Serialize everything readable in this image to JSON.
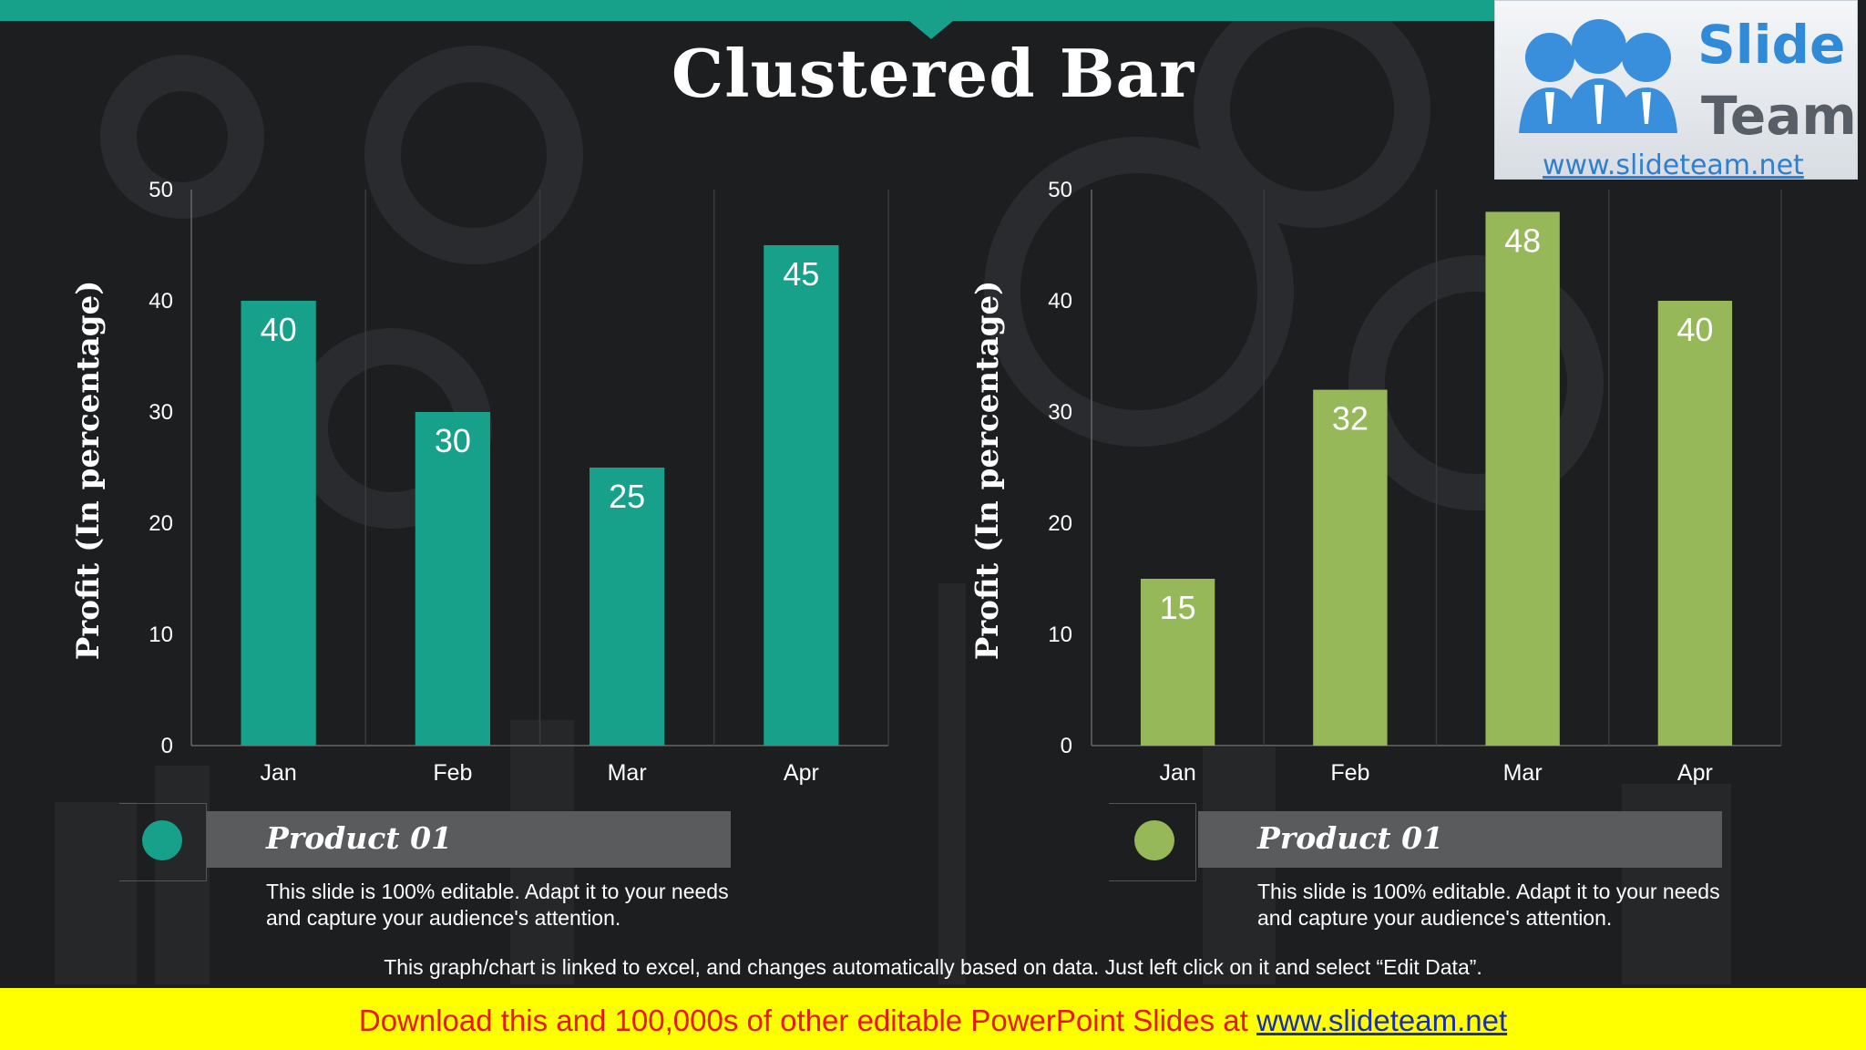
{
  "title": "Clustered Bar",
  "logo": {
    "word1": "Slide",
    "word2": "Team",
    "url": "www.slideteam.net"
  },
  "colors": {
    "teal": "#17a08a",
    "green": "#97b858",
    "background": "#1d1e20"
  },
  "chart_data": [
    {
      "type": "bar",
      "categories": [
        "Jan",
        "Feb",
        "Mar",
        "Apr"
      ],
      "values": [
        40,
        30,
        25,
        45
      ],
      "ylabel": "Profit  (In percentage)",
      "ylim": [
        0,
        50
      ],
      "yticks": [
        "0",
        "10",
        "20",
        "30",
        "40",
        "50"
      ],
      "color": "#17a08a",
      "grid": "vertical separators"
    },
    {
      "type": "bar",
      "categories": [
        "Jan",
        "Feb",
        "Mar",
        "Apr"
      ],
      "values": [
        15,
        32,
        48,
        40
      ],
      "ylabel": "Profit  (In percentage)",
      "ylim": [
        0,
        50
      ],
      "yticks": [
        "0",
        "10",
        "20",
        "30",
        "40",
        "50"
      ],
      "color": "#97b858",
      "grid": "vertical separators"
    }
  ],
  "legends": [
    {
      "title": "Product 01",
      "text": "This slide is 100% editable. Adapt it to your needs and capture your audience's attention."
    },
    {
      "title": "Product 01",
      "text": "This slide is 100% editable. Adapt it to your needs and capture your audience's attention."
    }
  ],
  "footnote": "This graph/chart is linked to excel, and changes automatically based on data. Just left click on it and select “Edit Data”.",
  "banner": {
    "text": "Download this and 100,000s of other editable PowerPoint Slides at ",
    "link": "www.slideteam.net"
  }
}
